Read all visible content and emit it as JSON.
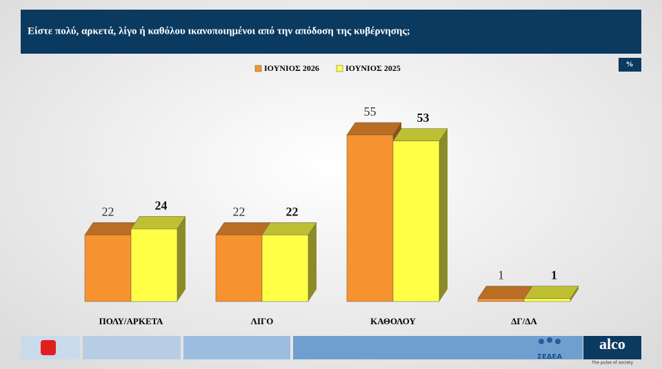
{
  "chart_data": {
    "type": "bar",
    "title": "Είστε πολύ, αρκετά, λίγο ή καθόλου ικανοποιημένοι από την  απόδοση της κυβέρνησης;",
    "unit_badge": "%",
    "categories": [
      "ΠΟΛΥ/ΑΡΚΕΤΑ",
      "ΛΙΓΟ",
      "ΚΑΘΟΛΟΥ",
      "ΔΓ/ΔΑ"
    ],
    "series": [
      {
        "name": "ΙΟΥΝΙΟΣ 2026",
        "color": "#f7932e",
        "values": [
          22,
          22,
          55,
          1
        ]
      },
      {
        "name": "ΙΟΥΝΙΟΣ 2025",
        "color": "#ffff45",
        "values": [
          24,
          22,
          53,
          1
        ]
      }
    ]
  },
  "footer": {
    "logo_sedea": "ΣΕΔΕΑ",
    "logo_alco": "alco",
    "slogan": "The pulse of society"
  }
}
